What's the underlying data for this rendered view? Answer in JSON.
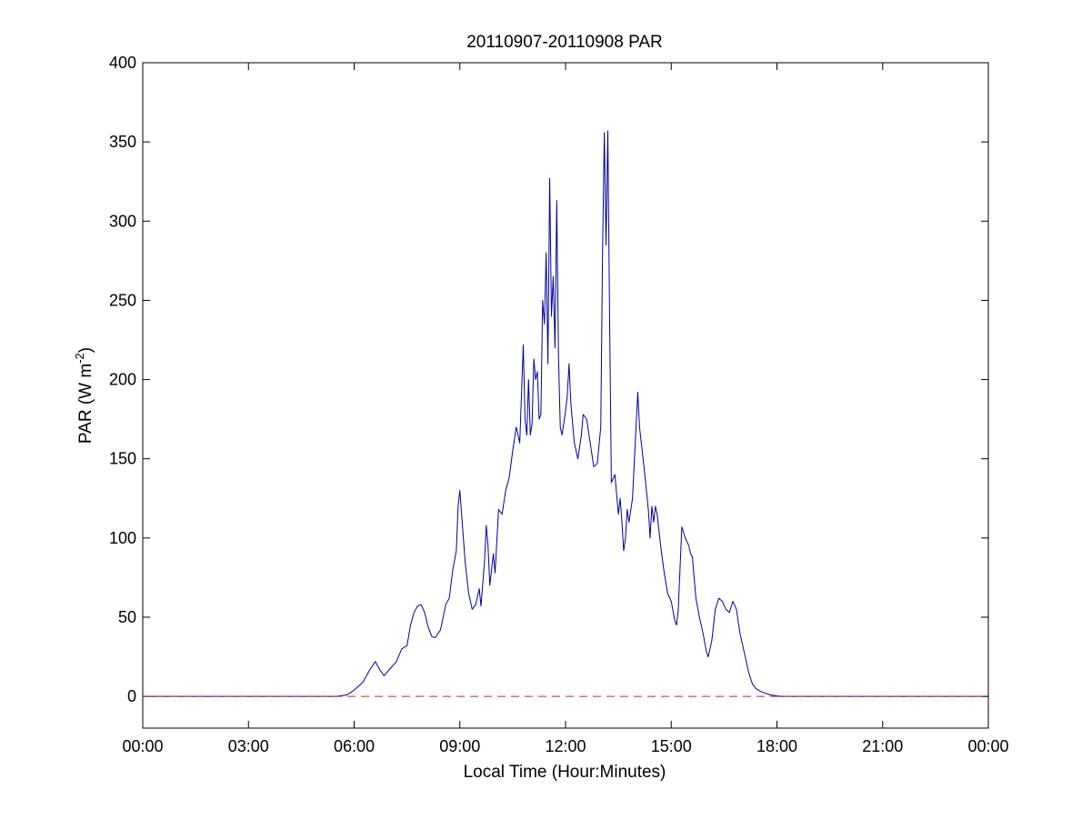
{
  "chart_data": {
    "type": "line",
    "title": "20110907-20110908 PAR",
    "xlabel": "Local Time (Hour:Minutes)",
    "ylabel_main": "PAR (W m",
    "ylabel_sup": "-2",
    "ylabel_close": ")",
    "x_unit": "hours since 00:00 local",
    "xlim": [
      0,
      24
    ],
    "ylim": [
      -20,
      400
    ],
    "x_ticks": [
      0,
      3,
      6,
      9,
      12,
      15,
      18,
      21,
      24
    ],
    "x_tick_labels": [
      "00:00",
      "03:00",
      "06:00",
      "09:00",
      "12:00",
      "15:00",
      "18:00",
      "21:00",
      "00:00"
    ],
    "y_ticks": [
      0,
      50,
      100,
      150,
      200,
      250,
      300,
      350,
      400
    ],
    "y_tick_labels": [
      "0",
      "50",
      "100",
      "150",
      "200",
      "250",
      "300",
      "350",
      "400"
    ],
    "grid": false,
    "series": [
      {
        "color": "#0000a0",
        "style": "solid",
        "points": [
          [
            0,
            0
          ],
          [
            5.5,
            0
          ],
          [
            5.8,
            1
          ],
          [
            6.0,
            4
          ],
          [
            6.25,
            9
          ],
          [
            6.45,
            17
          ],
          [
            6.6,
            22
          ],
          [
            6.75,
            16
          ],
          [
            6.85,
            13
          ],
          [
            7.0,
            17
          ],
          [
            7.2,
            22
          ],
          [
            7.35,
            30
          ],
          [
            7.5,
            32
          ],
          [
            7.6,
            45
          ],
          [
            7.7,
            53
          ],
          [
            7.8,
            57
          ],
          [
            7.9,
            58
          ],
          [
            8.0,
            53
          ],
          [
            8.1,
            44
          ],
          [
            8.2,
            38
          ],
          [
            8.3,
            37
          ],
          [
            8.45,
            42
          ],
          [
            8.6,
            58
          ],
          [
            8.7,
            62
          ],
          [
            8.8,
            80
          ],
          [
            8.9,
            92
          ],
          [
            8.95,
            120
          ],
          [
            9.0,
            130
          ],
          [
            9.05,
            115
          ],
          [
            9.15,
            85
          ],
          [
            9.25,
            65
          ],
          [
            9.35,
            55
          ],
          [
            9.45,
            58
          ],
          [
            9.55,
            68
          ],
          [
            9.6,
            57
          ],
          [
            9.7,
            85
          ],
          [
            9.75,
            108
          ],
          [
            9.8,
            95
          ],
          [
            9.85,
            70
          ],
          [
            9.95,
            90
          ],
          [
            10.0,
            78
          ],
          [
            10.05,
            98
          ],
          [
            10.1,
            118
          ],
          [
            10.2,
            115
          ],
          [
            10.3,
            130
          ],
          [
            10.4,
            138
          ],
          [
            10.5,
            155
          ],
          [
            10.6,
            170
          ],
          [
            10.7,
            160
          ],
          [
            10.8,
            222
          ],
          [
            10.85,
            175
          ],
          [
            10.9,
            165
          ],
          [
            10.95,
            200
          ],
          [
            11.0,
            165
          ],
          [
            11.05,
            172
          ],
          [
            11.1,
            213
          ],
          [
            11.15,
            200
          ],
          [
            11.2,
            205
          ],
          [
            11.25,
            175
          ],
          [
            11.3,
            178
          ],
          [
            11.35,
            250
          ],
          [
            11.4,
            235
          ],
          [
            11.45,
            280
          ],
          [
            11.5,
            210
          ],
          [
            11.55,
            327
          ],
          [
            11.6,
            240
          ],
          [
            11.65,
            265
          ],
          [
            11.7,
            220
          ],
          [
            11.75,
            313
          ],
          [
            11.8,
            215
          ],
          [
            11.85,
            170
          ],
          [
            11.9,
            165
          ],
          [
            12.0,
            180
          ],
          [
            12.05,
            190
          ],
          [
            12.1,
            210
          ],
          [
            12.15,
            185
          ],
          [
            12.25,
            160
          ],
          [
            12.35,
            150
          ],
          [
            12.45,
            165
          ],
          [
            12.5,
            178
          ],
          [
            12.6,
            175
          ],
          [
            12.7,
            160
          ],
          [
            12.8,
            145
          ],
          [
            12.9,
            147
          ],
          [
            13.0,
            170
          ],
          [
            13.05,
            280
          ],
          [
            13.1,
            356
          ],
          [
            13.15,
            285
          ],
          [
            13.2,
            357
          ],
          [
            13.25,
            240
          ],
          [
            13.3,
            135
          ],
          [
            13.4,
            140
          ],
          [
            13.5,
            115
          ],
          [
            13.55,
            125
          ],
          [
            13.6,
            110
          ],
          [
            13.65,
            92
          ],
          [
            13.7,
            100
          ],
          [
            13.75,
            118
          ],
          [
            13.8,
            110
          ],
          [
            13.9,
            125
          ],
          [
            14.0,
            170
          ],
          [
            14.05,
            192
          ],
          [
            14.1,
            170
          ],
          [
            14.15,
            160
          ],
          [
            14.25,
            140
          ],
          [
            14.35,
            118
          ],
          [
            14.4,
            100
          ],
          [
            14.45,
            120
          ],
          [
            14.5,
            110
          ],
          [
            14.55,
            120
          ],
          [
            14.6,
            115
          ],
          [
            14.7,
            95
          ],
          [
            14.8,
            78
          ],
          [
            14.9,
            65
          ],
          [
            15.0,
            60
          ],
          [
            15.1,
            48
          ],
          [
            15.15,
            45
          ],
          [
            15.2,
            55
          ],
          [
            15.3,
            107
          ],
          [
            15.4,
            100
          ],
          [
            15.5,
            95
          ],
          [
            15.55,
            90
          ],
          [
            15.6,
            88
          ],
          [
            15.7,
            62
          ],
          [
            15.8,
            50
          ],
          [
            15.9,
            40
          ],
          [
            16.0,
            28
          ],
          [
            16.05,
            25
          ],
          [
            16.15,
            35
          ],
          [
            16.25,
            55
          ],
          [
            16.35,
            62
          ],
          [
            16.45,
            60
          ],
          [
            16.55,
            55
          ],
          [
            16.65,
            53
          ],
          [
            16.75,
            60
          ],
          [
            16.85,
            55
          ],
          [
            16.95,
            40
          ],
          [
            17.1,
            25
          ],
          [
            17.2,
            15
          ],
          [
            17.3,
            8
          ],
          [
            17.4,
            5
          ],
          [
            17.55,
            3
          ],
          [
            17.8,
            1
          ],
          [
            18.1,
            0
          ],
          [
            24,
            0
          ]
        ]
      },
      {
        "color": "#cc2222",
        "style": "dashed",
        "points": [
          [
            0,
            0
          ],
          [
            24,
            0
          ]
        ]
      }
    ]
  }
}
